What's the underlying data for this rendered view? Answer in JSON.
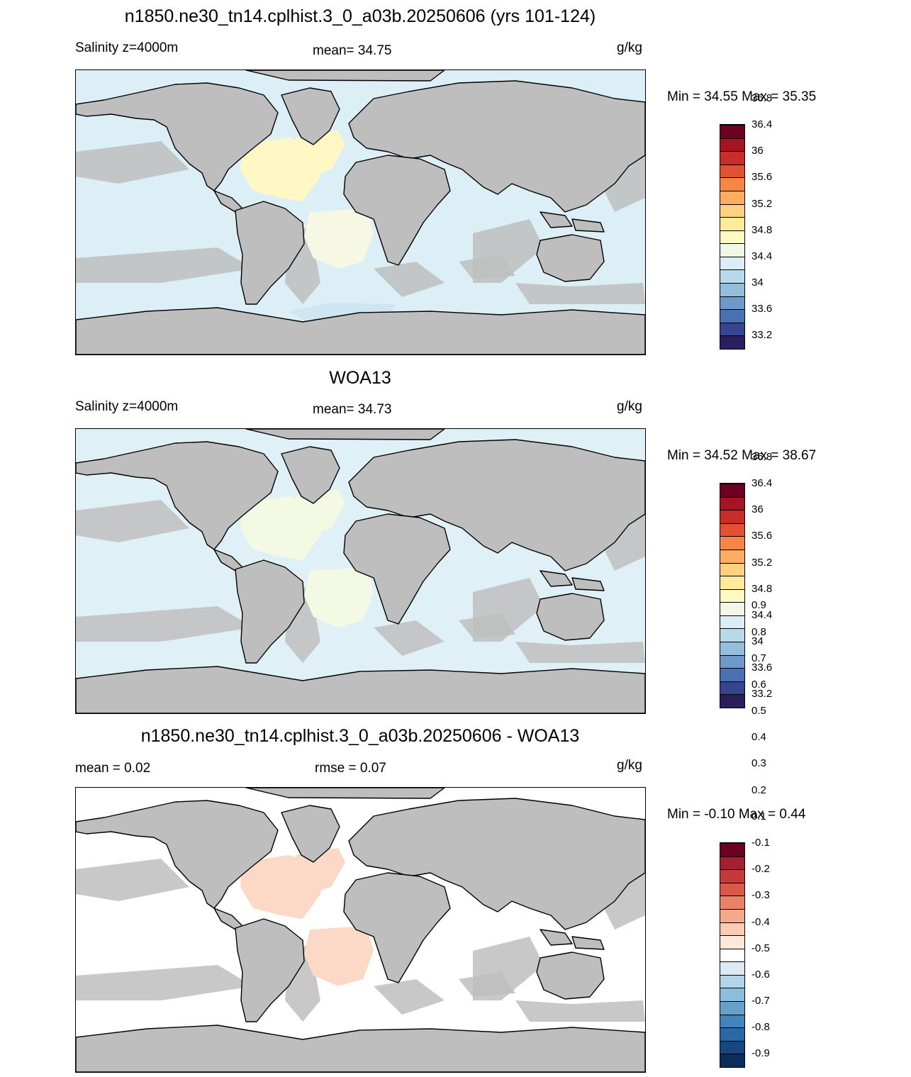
{
  "panels": [
    {
      "title": "n1850.ne30_tn14.cplhist.3_0_a03b.20250606 (yrs 101-124)",
      "left_label": "Salinity z=4000m",
      "center_label": "mean=  34.75",
      "units": "g/kg",
      "minmax": "Min =  34.55 Max =  35.35",
      "colorbar": {
        "colors": [
          "#2a1f5c",
          "#35458f",
          "#4a72b0",
          "#6f99c8",
          "#94bfdc",
          "#b7d9ea",
          "#dbedf5",
          "#f1f8e6",
          "#fffac3",
          "#ffeb9a",
          "#fed082",
          "#fcad63",
          "#f68646",
          "#e35134",
          "#c82d2a",
          "#a61424",
          "#6d0020"
        ],
        "labels": [
          "33.2",
          "33.6",
          "34",
          "34.4",
          "34.8",
          "35.2",
          "35.6",
          "36",
          "36.4",
          "36.8"
        ]
      }
    },
    {
      "title": "WOA13",
      "left_label": "Salinity z=4000m",
      "center_label": "mean=  34.73",
      "units": "g/kg",
      "minmax": "Min =  34.52 Max =  38.67",
      "colorbar": {
        "colors": [
          "#2a1f5c",
          "#35458f",
          "#4a72b0",
          "#6f99c8",
          "#94bfdc",
          "#b7d9ea",
          "#dbedf5",
          "#f1f8e6",
          "#fffac3",
          "#ffeb9a",
          "#fed082",
          "#fcad63",
          "#f68646",
          "#e35134",
          "#c82d2a",
          "#a61424",
          "#6d0020"
        ],
        "labels": [
          "33.2",
          "33.6",
          "34",
          "34.4",
          "34.8",
          "35.2",
          "35.6",
          "36",
          "36.4",
          "36.8"
        ]
      }
    },
    {
      "title": "n1850.ne30_tn14.cplhist.3_0_a03b.20250606 - WOA13",
      "left_label": "mean =   0.02",
      "center_label": "rmse =   0.07",
      "units": "g/kg",
      "minmax": "Min =  -0.10 Max =   0.44",
      "colorbar": {
        "colors": [
          "#0b2d5c",
          "#18467f",
          "#2a68a5",
          "#4385bb",
          "#66a1cc",
          "#8dbcdc",
          "#b4d4e8",
          "#dceaf3",
          "#ffffff",
          "#fde8dc",
          "#fbcbb4",
          "#f4a98b",
          "#e98368",
          "#d9594b",
          "#c33a3a",
          "#a2202f",
          "#6d0020"
        ],
        "labels": [
          "-0.9",
          "-0.8",
          "-0.7",
          "-0.6",
          "-0.5",
          "-0.4",
          "-0.3",
          "-0.2",
          "-0.1",
          "0.1",
          "0.2",
          "0.3",
          "0.4",
          "0.5",
          "0.6",
          "0.7",
          "0.8",
          "0.9"
        ]
      }
    }
  ],
  "map": {
    "land_color": "#bebebe",
    "ocean_colors": [
      "#dceef6",
      "#e0f0f7",
      "#ffffff"
    ],
    "highlight_colors": [
      "#fff8c4",
      "#f4f9e3",
      "#fbd9c6"
    ]
  }
}
